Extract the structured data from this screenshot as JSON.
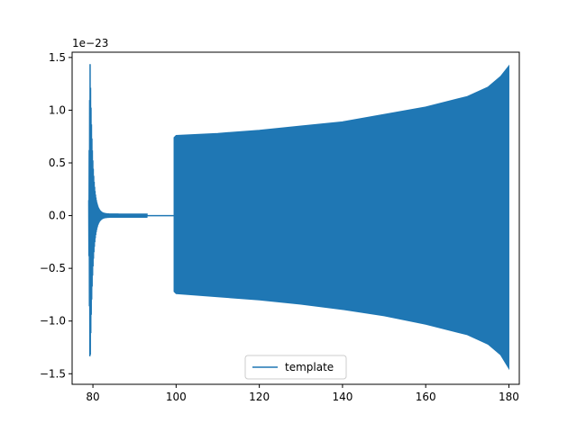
{
  "chart_data": {
    "type": "line",
    "title": "",
    "xlabel": "",
    "ylabel": "",
    "y_offset_label": "1e−23",
    "xlim": [
      75,
      182.5
    ],
    "ylim": [
      -1.6,
      1.55
    ],
    "xticks": [
      80,
      100,
      120,
      140,
      160,
      180
    ],
    "yticks": [
      -1.5,
      -1.0,
      -0.5,
      0.0,
      0.5,
      1.0,
      1.5
    ],
    "xtick_labels": [
      "80",
      "100",
      "120",
      "140",
      "160",
      "180"
    ],
    "ytick_labels": [
      "−1.5",
      "−1.0",
      "−0.5",
      "0.0",
      "0.5",
      "1.0",
      "1.5"
    ],
    "grid": false,
    "legend": {
      "placement": "lower center",
      "entries": [
        "template"
      ]
    },
    "series": [
      {
        "name": "template",
        "color": "#1f77b4",
        "segments": [
          {
            "description": "transient",
            "x_start": 79,
            "x_end": 93,
            "peak_amplitude": 1.47,
            "x_peak": 79.3
          },
          {
            "description": "flat",
            "x_start": 93,
            "x_end": 99.5,
            "value": 0.0
          },
          {
            "description": "oscillation_band",
            "x_start": 99.5,
            "x_end": 180,
            "envelope_x": [
              99.5,
              100,
              110,
              120,
              130,
              140,
              150,
              160,
              170,
              175,
              178,
              180
            ],
            "envelope_upper": [
              0.74,
              0.76,
              0.78,
              0.81,
              0.85,
              0.89,
              0.96,
              1.03,
              1.13,
              1.22,
              1.32,
              1.42
            ],
            "envelope_lower": [
              -0.72,
              -0.74,
              -0.77,
              -0.8,
              -0.84,
              -0.89,
              -0.95,
              -1.03,
              -1.13,
              -1.22,
              -1.32,
              -1.45
            ]
          }
        ]
      }
    ]
  }
}
